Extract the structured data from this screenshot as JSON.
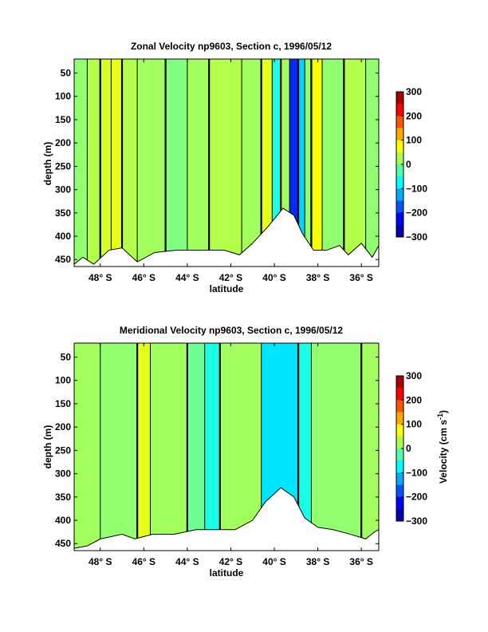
{
  "chart_data": [
    {
      "type": "heatmap",
      "subtype": "filled-contour",
      "title": "Zonal Velocity np9603, Section c, 1996/05/12",
      "xlabel": "latitude",
      "ylabel": "depth (m)",
      "xticks": [
        "48° S",
        "46° S",
        "44° S",
        "42° S",
        "40° S",
        "38° S",
        "36° S"
      ],
      "xtick_values": [
        -48,
        -46,
        -44,
        -42,
        -40,
        -38,
        -36
      ],
      "xlim": [
        -49.2,
        -35.2
      ],
      "yticks": [
        50,
        100,
        150,
        200,
        250,
        300,
        350,
        400,
        450
      ],
      "ylim": [
        20,
        465
      ],
      "y_reversed": true,
      "colorbar": {
        "label": "",
        "ticks": [
          300,
          200,
          100,
          0,
          -100,
          -200,
          -300
        ],
        "range": [
          -300,
          300
        ],
        "colormap": "jet"
      },
      "bands": [
        {
          "from": -49.2,
          "to": -48.6,
          "value": 10
        },
        {
          "from": -48.6,
          "to": -48.0,
          "value": 30
        },
        {
          "from": -48.0,
          "to": -47.5,
          "value": 50
        },
        {
          "from": -47.5,
          "to": -47.0,
          "value": 60
        },
        {
          "from": -47.0,
          "to": -46.3,
          "value": 30
        },
        {
          "from": -46.3,
          "to": -45.0,
          "value": 20
        },
        {
          "from": -45.0,
          "to": -44.0,
          "value": 0
        },
        {
          "from": -44.0,
          "to": -43.0,
          "value": 20
        },
        {
          "from": -43.0,
          "to": -41.5,
          "value": 30
        },
        {
          "from": -41.5,
          "to": -40.6,
          "value": 20
        },
        {
          "from": -40.6,
          "to": -40.1,
          "value": 60
        },
        {
          "from": -40.1,
          "to": -39.7,
          "value": -60
        },
        {
          "from": -39.7,
          "to": -39.3,
          "value": 20
        },
        {
          "from": -39.3,
          "to": -38.9,
          "value": -200
        },
        {
          "from": -38.9,
          "to": -38.6,
          "value": -100
        },
        {
          "from": -38.6,
          "to": -38.3,
          "value": 10
        },
        {
          "from": -38.3,
          "to": -37.8,
          "value": 70
        },
        {
          "from": -37.8,
          "to": -36.8,
          "value": 10
        },
        {
          "from": -36.8,
          "to": -35.8,
          "value": 30
        },
        {
          "from": -35.8,
          "to": -35.2,
          "value": 10
        }
      ],
      "bottom_depth": [
        {
          "lat": -49.2,
          "depth": 460
        },
        {
          "lat": -48.8,
          "depth": 445
        },
        {
          "lat": -48.3,
          "depth": 460
        },
        {
          "lat": -47.6,
          "depth": 430
        },
        {
          "lat": -47.0,
          "depth": 425
        },
        {
          "lat": -46.3,
          "depth": 455
        },
        {
          "lat": -45.5,
          "depth": 435
        },
        {
          "lat": -44.5,
          "depth": 430
        },
        {
          "lat": -43.5,
          "depth": 430
        },
        {
          "lat": -42.3,
          "depth": 430
        },
        {
          "lat": -41.6,
          "depth": 440
        },
        {
          "lat": -41.0,
          "depth": 415
        },
        {
          "lat": -40.3,
          "depth": 380
        },
        {
          "lat": -39.6,
          "depth": 340
        },
        {
          "lat": -39.1,
          "depth": 355
        },
        {
          "lat": -38.7,
          "depth": 395
        },
        {
          "lat": -38.2,
          "depth": 430
        },
        {
          "lat": -37.6,
          "depth": 430
        },
        {
          "lat": -37.0,
          "depth": 420
        },
        {
          "lat": -36.6,
          "depth": 440
        },
        {
          "lat": -36.0,
          "depth": 415
        },
        {
          "lat": -35.5,
          "depth": 445
        },
        {
          "lat": -35.2,
          "depth": 420
        }
      ]
    },
    {
      "type": "heatmap",
      "subtype": "filled-contour",
      "title": "Meridional Velocity np9603, Section c, 1996/05/12",
      "xlabel": "latitude",
      "ylabel": "depth (m)",
      "xticks": [
        "48° S",
        "46° S",
        "44° S",
        "42° S",
        "40° S",
        "38° S",
        "36° S"
      ],
      "xtick_values": [
        -48,
        -46,
        -44,
        -42,
        -40,
        -38,
        -36
      ],
      "xlim": [
        -49.2,
        -35.2
      ],
      "yticks": [
        50,
        100,
        150,
        200,
        250,
        300,
        350,
        400,
        450
      ],
      "ylim": [
        20,
        465
      ],
      "y_reversed": true,
      "colorbar": {
        "label": "Velocity (cm s",
        "label_exponent": "-1",
        "label_suffix": ")",
        "ticks": [
          300,
          200,
          100,
          0,
          -100,
          -200,
          -300
        ],
        "range": [
          -300,
          300
        ],
        "colormap": "jet"
      },
      "bands": [
        {
          "from": -49.2,
          "to": -48.0,
          "value": 20
        },
        {
          "from": -48.0,
          "to": -46.3,
          "value": 10
        },
        {
          "from": -46.3,
          "to": -45.7,
          "value": 60
        },
        {
          "from": -45.7,
          "to": -44.0,
          "value": 20
        },
        {
          "from": -44.0,
          "to": -43.2,
          "value": -10
        },
        {
          "from": -43.2,
          "to": -42.5,
          "value": -60
        },
        {
          "from": -42.5,
          "to": -40.6,
          "value": 20
        },
        {
          "from": -40.6,
          "to": -38.9,
          "value": -90
        },
        {
          "from": -38.9,
          "to": -38.3,
          "value": -60
        },
        {
          "from": -38.3,
          "to": -36.0,
          "value": 10
        },
        {
          "from": -36.0,
          "to": -35.2,
          "value": 20
        }
      ],
      "bottom_depth": [
        {
          "lat": -49.2,
          "depth": 460
        },
        {
          "lat": -48.6,
          "depth": 455
        },
        {
          "lat": -48.0,
          "depth": 440
        },
        {
          "lat": -47.0,
          "depth": 430
        },
        {
          "lat": -46.4,
          "depth": 440
        },
        {
          "lat": -45.6,
          "depth": 430
        },
        {
          "lat": -44.6,
          "depth": 430
        },
        {
          "lat": -43.6,
          "depth": 420
        },
        {
          "lat": -42.6,
          "depth": 420
        },
        {
          "lat": -41.8,
          "depth": 420
        },
        {
          "lat": -41.0,
          "depth": 400
        },
        {
          "lat": -40.4,
          "depth": 360
        },
        {
          "lat": -39.7,
          "depth": 330
        },
        {
          "lat": -39.1,
          "depth": 350
        },
        {
          "lat": -38.6,
          "depth": 395
        },
        {
          "lat": -38.0,
          "depth": 415
        },
        {
          "lat": -37.3,
          "depth": 420
        },
        {
          "lat": -36.5,
          "depth": 430
        },
        {
          "lat": -35.8,
          "depth": 440
        },
        {
          "lat": -35.4,
          "depth": 425
        },
        {
          "lat": -35.2,
          "depth": 420
        }
      ]
    }
  ]
}
